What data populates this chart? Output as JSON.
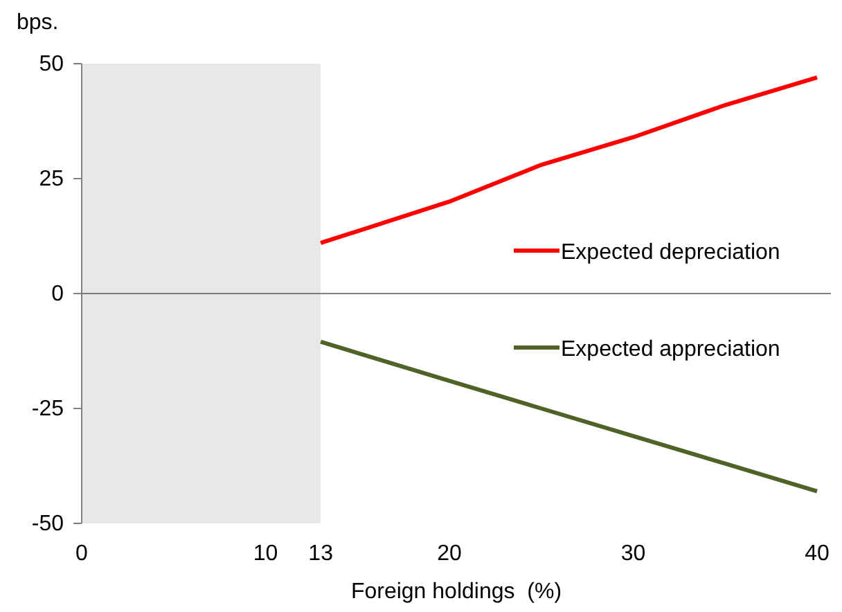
{
  "chart_data": {
    "type": "line",
    "ylabel": "bps.",
    "xlabel": "Foreign holdings  (%)",
    "xlim": [
      0,
      40
    ],
    "xticks": [
      0,
      10,
      13,
      20,
      30,
      40
    ],
    "ylim": [
      -50,
      50
    ],
    "yticks": [
      50,
      25,
      0,
      -25,
      -50
    ],
    "series": [
      {
        "name": "Expected depreciation",
        "color": "#ff0000",
        "x": [
          13,
          20,
          25,
          30,
          35,
          40
        ],
        "values": [
          11,
          20,
          28,
          34,
          41,
          47
        ]
      },
      {
        "name": "Expected appreciation",
        "color": "#4f6228",
        "x": [
          13,
          20,
          25,
          30,
          35,
          40
        ],
        "values": [
          -10.5,
          -19,
          -25,
          -31,
          -37,
          -43
        ]
      }
    ],
    "ref_lines": [
      {
        "axis": "y",
        "value": 0,
        "color": "#808080"
      }
    ],
    "bands": [
      {
        "axis": "x",
        "from": 0,
        "to": 13,
        "color": "#e8e8e8"
      }
    ],
    "legend": "right",
    "grid": false,
    "line_style": "solid",
    "marker": "none"
  }
}
